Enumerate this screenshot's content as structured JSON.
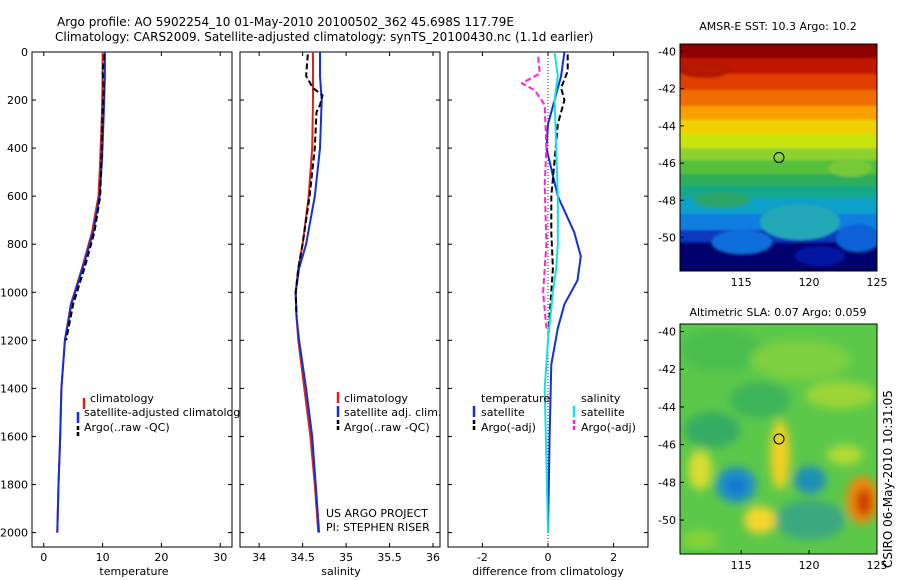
{
  "header": {
    "line1": "Argo profile: AO 5902254_10 01-May-2010 20100502_362 45.698S 117.79E",
    "line2": "Climatology: CARS2009. Satellite-adjusted climatology: synTS_20100430.nc (1.1d earlier)"
  },
  "credit": {
    "line1": "US ARGO PROJECT",
    "line2": "PI: STEPHEN RISER"
  },
  "side_stamp": "CSIRO 06-May-2010 10:31:05",
  "colors": {
    "red": "#e0201a",
    "blue": "#1030e0",
    "black": "#000000",
    "cyan": "#18e0e0",
    "magenta": "#ff1fdd"
  },
  "chart_data": [
    {
      "type": "line",
      "title": "",
      "xlabel": "temperature",
      "ylabel": "",
      "xlim": [
        -2,
        32
      ],
      "ylim": [
        2060,
        0
      ],
      "xticks": [
        0,
        10,
        20,
        30
      ],
      "yticks": [
        0,
        200,
        400,
        600,
        800,
        1000,
        1200,
        1400,
        1600,
        1800,
        2000
      ],
      "legend": {
        "placement": "bottom-center",
        "entries": [
          "climatology",
          "satellite-adjusted climatology",
          "Argo(..raw -QC)"
        ]
      },
      "series": [
        {
          "name": "climatology",
          "color": "red",
          "dash": "",
          "points": [
            [
              10.0,
              0
            ],
            [
              10.0,
              100
            ],
            [
              9.9,
              250
            ],
            [
              9.6,
              450
            ],
            [
              9.3,
              600
            ],
            [
              8.2,
              750
            ],
            [
              6.5,
              900
            ],
            [
              4.6,
              1050
            ],
            [
              3.6,
              1200
            ],
            [
              3.0,
              1400
            ],
            [
              2.8,
              1600
            ],
            [
              2.5,
              1800
            ],
            [
              2.3,
              2000
            ]
          ]
        },
        {
          "name": "satellite-adjusted climatology",
          "color": "blue",
          "dash": "",
          "points": [
            [
              10.4,
              0
            ],
            [
              10.4,
              100
            ],
            [
              10.2,
              250
            ],
            [
              9.9,
              450
            ],
            [
              9.5,
              600
            ],
            [
              8.4,
              750
            ],
            [
              6.6,
              900
            ],
            [
              4.7,
              1050
            ],
            [
              3.6,
              1200
            ],
            [
              3.0,
              1400
            ],
            [
              2.8,
              1600
            ],
            [
              2.5,
              1800
            ],
            [
              2.3,
              2000
            ]
          ]
        },
        {
          "name": "Argo(..raw -QC)",
          "color": "black",
          "dash": "6,3",
          "points": [
            [
              10.3,
              10
            ],
            [
              10.0,
              80
            ],
            [
              10.2,
              150
            ],
            [
              10.0,
              250
            ],
            [
              9.8,
              450
            ],
            [
              9.6,
              600
            ],
            [
              8.6,
              750
            ],
            [
              6.9,
              900
            ],
            [
              5.0,
              1050
            ],
            [
              3.8,
              1200
            ]
          ]
        }
      ]
    },
    {
      "type": "line",
      "title": "",
      "xlabel": "salinity",
      "ylabel": "",
      "xlim": [
        33.78,
        36.08
      ],
      "ylim": [
        2060,
        0
      ],
      "xticks": [
        34,
        34.5,
        35,
        35.5,
        36
      ],
      "yticks": [
        0,
        200,
        400,
        600,
        800,
        1000,
        1200,
        1400,
        1600,
        1800,
        2000
      ],
      "legend": {
        "placement": "bottom-center",
        "entries": [
          "climatology",
          "satellite adj. clim.",
          "Argo(..raw -QC)"
        ]
      },
      "series": [
        {
          "name": "climatology",
          "color": "red",
          "dash": "",
          "points": [
            [
              34.62,
              0
            ],
            [
              34.62,
              100
            ],
            [
              34.62,
              200
            ],
            [
              34.61,
              400
            ],
            [
              34.57,
              600
            ],
            [
              34.5,
              800
            ],
            [
              34.45,
              900
            ],
            [
              34.42,
              1000
            ],
            [
              34.43,
              1100
            ],
            [
              34.45,
              1200
            ],
            [
              34.52,
              1400
            ],
            [
              34.59,
              1600
            ],
            [
              34.64,
              1800
            ],
            [
              34.68,
              2000
            ]
          ]
        },
        {
          "name": "satellite adj. clim.",
          "color": "blue",
          "dash": "",
          "points": [
            [
              34.7,
              0
            ],
            [
              34.7,
              100
            ],
            [
              34.72,
              200
            ],
            [
              34.7,
              400
            ],
            [
              34.64,
              600
            ],
            [
              34.54,
              800
            ],
            [
              34.46,
              900
            ],
            [
              34.42,
              1000
            ],
            [
              34.43,
              1100
            ],
            [
              34.46,
              1200
            ],
            [
              34.54,
              1400
            ],
            [
              34.61,
              1600
            ],
            [
              34.65,
              1800
            ],
            [
              34.69,
              2000
            ]
          ]
        },
        {
          "name": "Argo(..raw -QC)",
          "color": "black",
          "dash": "6,3",
          "points": [
            [
              34.56,
              10
            ],
            [
              34.54,
              100
            ],
            [
              34.62,
              150
            ],
            [
              34.73,
              180
            ],
            [
              34.7,
              220
            ],
            [
              34.66,
              250
            ],
            [
              34.64,
              400
            ],
            [
              34.58,
              600
            ],
            [
              34.5,
              800
            ],
            [
              34.45,
              900
            ],
            [
              34.42,
              1000
            ],
            [
              34.43,
              1100
            ]
          ]
        }
      ]
    },
    {
      "type": "line",
      "title": "",
      "xlabel": "difference from climatology",
      "ylabel": "",
      "xlim": [
        -3.05,
        3.05
      ],
      "ylim": [
        2060,
        0
      ],
      "xticks": [
        -2,
        0,
        2
      ],
      "yticks": [
        0,
        200,
        400,
        600,
        800,
        1000,
        1200,
        1400,
        1600,
        1800,
        2000
      ],
      "legend": {
        "placement": "bottom-center",
        "groups": [
          {
            "heading": "temperature",
            "entries": [
              "satellite",
              "Argo(-adj)"
            ]
          },
          {
            "heading": "salinity",
            "entries": [
              "satellite",
              "Argo(-adj)"
            ]
          }
        ]
      },
      "series": [
        {
          "name": "temperature satellite",
          "color": "blue",
          "dash": "",
          "points": [
            [
              0.5,
              0
            ],
            [
              0.4,
              100
            ],
            [
              0.0,
              300
            ],
            [
              -0.05,
              400
            ],
            [
              0.3,
              600
            ],
            [
              0.8,
              750
            ],
            [
              1.0,
              850
            ],
            [
              0.9,
              950
            ],
            [
              0.5,
              1050
            ],
            [
              0.3,
              1150
            ],
            [
              0.1,
              1300
            ],
            [
              0.05,
              1600
            ],
            [
              0.0,
              2000
            ]
          ]
        },
        {
          "name": "temperature Argo(-adj)",
          "color": "black",
          "dash": "6,3",
          "points": [
            [
              0.6,
              10
            ],
            [
              0.6,
              80
            ],
            [
              0.4,
              150
            ],
            [
              0.5,
              200
            ],
            [
              0.3,
              300
            ],
            [
              0.2,
              450
            ],
            [
              0.1,
              600
            ],
            [
              0.1,
              750
            ],
            [
              0.15,
              900
            ],
            [
              0.05,
              1100
            ],
            [
              0.0,
              1200
            ]
          ]
        },
        {
          "name": "salinity satellite",
          "color": "cyan",
          "dash": "",
          "points": [
            [
              0.2,
              0
            ],
            [
              0.3,
              100
            ],
            [
              0.2,
              200
            ],
            [
              0.25,
              400
            ],
            [
              0.3,
              600
            ],
            [
              0.3,
              800
            ],
            [
              0.25,
              900
            ],
            [
              0.15,
              1000
            ],
            [
              0.0,
              1200
            ],
            [
              -0.1,
              1400
            ],
            [
              -0.05,
              1700
            ],
            [
              0.0,
              2000
            ]
          ]
        },
        {
          "name": "salinity Argo(-adj)",
          "color": "magenta",
          "dash": "6,3",
          "points": [
            [
              -0.3,
              20
            ],
            [
              -0.25,
              90
            ],
            [
              -0.8,
              130
            ],
            [
              -0.4,
              160
            ],
            [
              -0.1,
              220
            ],
            [
              -0.05,
              400
            ],
            [
              -0.1,
              550
            ],
            [
              -0.05,
              800
            ],
            [
              -0.15,
              1000
            ],
            [
              -0.05,
              1150
            ]
          ]
        }
      ]
    },
    {
      "type": "heatmap",
      "title": "AMSR-E SST: 10.3 Argo: 10.2",
      "xlim": [
        110.5,
        125
      ],
      "ylim": [
        -51.8,
        -39.6
      ],
      "xticks": [
        115,
        120,
        125
      ],
      "yticks": [
        -40,
        -42,
        -44,
        -46,
        -48,
        -50
      ],
      "marker": {
        "lon": 117.79,
        "lat": -45.698
      }
    },
    {
      "type": "heatmap",
      "title": "Altimetric SLA: 0.07 Argo: 0.059",
      "xlim": [
        110.5,
        125
      ],
      "ylim": [
        -51.8,
        -39.6
      ],
      "xticks": [
        115,
        120,
        125
      ],
      "yticks": [
        -40,
        -42,
        -44,
        -46,
        -48,
        -50
      ],
      "marker": {
        "lon": 117.79,
        "lat": -45.698
      }
    }
  ]
}
